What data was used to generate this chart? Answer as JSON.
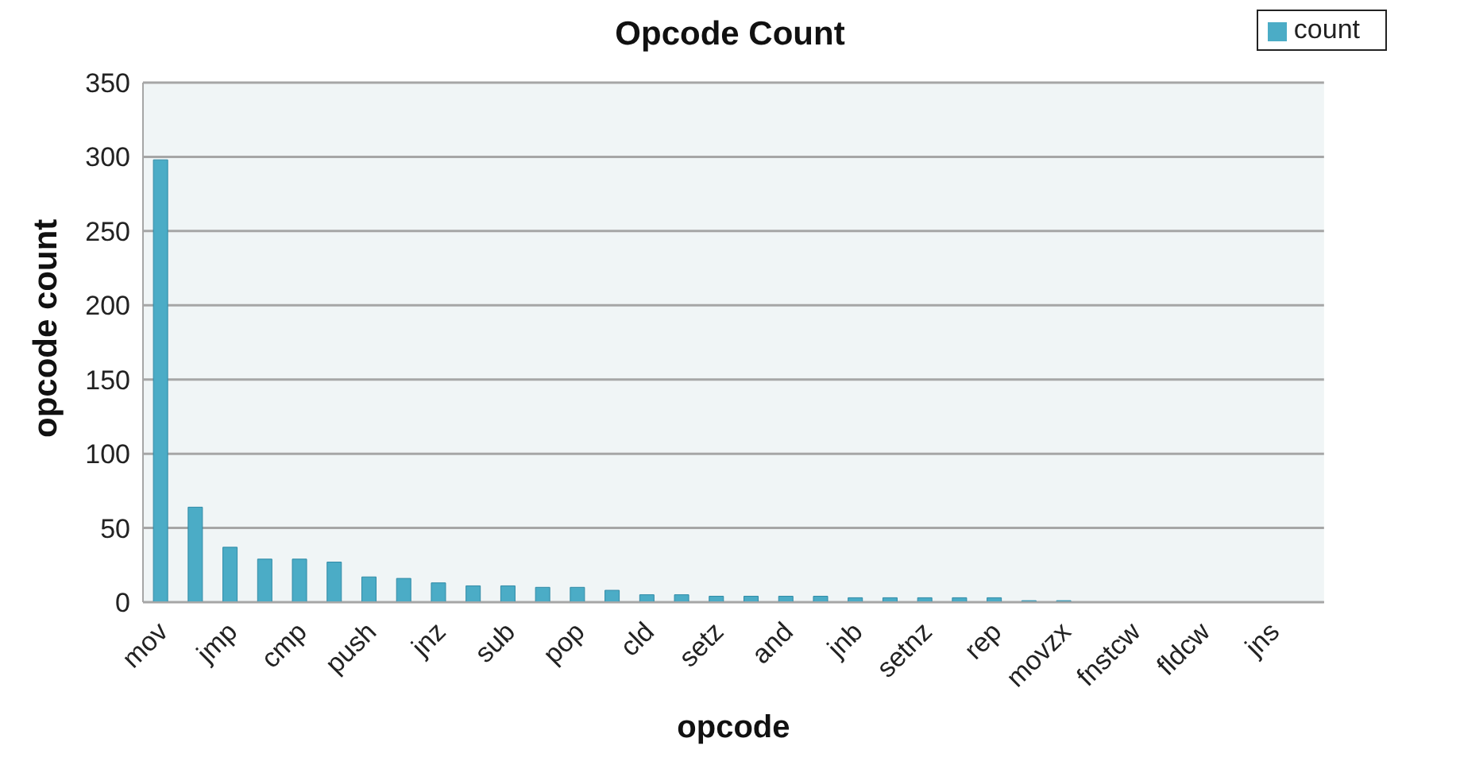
{
  "chart_data": {
    "type": "bar",
    "title": "Opcode Count",
    "xlabel": "opcode",
    "ylabel": "opcode count",
    "categories": [
      "mov",
      null,
      "jmp",
      null,
      "cmp",
      null,
      "push",
      null,
      "jnz",
      null,
      "sub",
      null,
      "pop",
      null,
      "cld",
      null,
      "setz",
      null,
      "and",
      null,
      "jnb",
      null,
      "setnz",
      null,
      "rep",
      null,
      "movzx",
      null,
      "fnstcw",
      null,
      "fldcw",
      null,
      "jns",
      null
    ],
    "series": [
      {
        "name": "count",
        "color": "#4bacc6",
        "values": [
          298,
          64,
          37,
          29,
          29,
          27,
          17,
          16,
          13,
          11,
          11,
          10,
          10,
          8,
          5,
          5,
          4,
          4,
          4,
          4,
          3,
          3,
          3,
          3,
          3,
          1,
          1,
          0,
          0,
          0,
          0,
          0,
          0,
          0
        ]
      }
    ],
    "ylim": [
      0,
      350
    ],
    "yticks": [
      0,
      50,
      100,
      150,
      200,
      250,
      300,
      350
    ],
    "grid": "y",
    "legend": "top right"
  }
}
